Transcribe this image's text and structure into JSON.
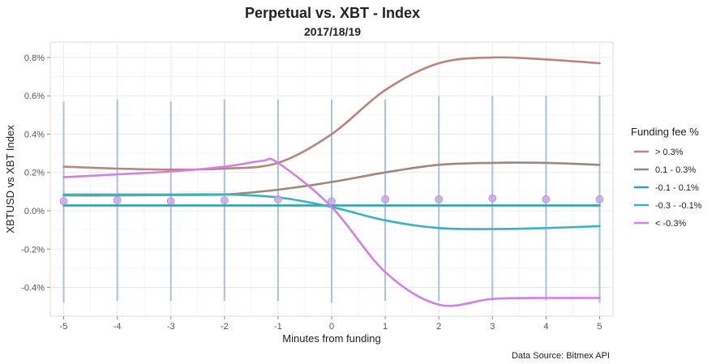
{
  "chart_data": {
    "type": "line",
    "title": "Perpetual vs. XBT - Index",
    "subtitle": "2017/18/19",
    "xlabel": "Minutes from funding",
    "ylabel": "XBTUSD vs XBT Index",
    "caption": "Data Source: Bitmex API",
    "xlim": [
      -5.25,
      5.25
    ],
    "ylim": [
      -0.0055,
      0.0088
    ],
    "x_ticks": [
      -5,
      -4,
      -3,
      -2,
      -1,
      0,
      1,
      2,
      3,
      4,
      5
    ],
    "x_tick_labels": [
      "-5",
      "-4",
      "-3",
      "-2",
      "-1",
      "0",
      "1",
      "2",
      "3",
      "4",
      "5"
    ],
    "y_ticks": [
      -0.004,
      -0.002,
      0,
      0.002,
      0.004,
      0.006,
      0.008
    ],
    "y_tick_labels": [
      "-0.4%",
      "-0.2%",
      "0.0%",
      "0.2%",
      "0.4%",
      "0.6%",
      "0.8%"
    ],
    "grid": true,
    "legend": {
      "title": "Funding fee %",
      "position": "right"
    },
    "series": [
      {
        "name": "> 0.3%",
        "color": "#B8867B",
        "x": [
          -5,
          -4,
          -3,
          -2,
          -1,
          0,
          1,
          2,
          3,
          4,
          5
        ],
        "values": [
          0.0023,
          0.0022,
          0.00215,
          0.0022,
          0.0025,
          0.004,
          0.0063,
          0.0077,
          0.008,
          0.0079,
          0.0077
        ]
      },
      {
        "name": "0.1 - 0.3%",
        "color": "#A0877A",
        "x": [
          -5,
          -4,
          -3,
          -2,
          -1,
          0,
          1,
          2,
          3,
          4,
          5
        ],
        "values": [
          0.0008,
          0.0008,
          0.00082,
          0.00085,
          0.0011,
          0.0015,
          0.002,
          0.0024,
          0.0025,
          0.0025,
          0.0024
        ]
      },
      {
        "name": "-0.1 - 0.1%",
        "color": "#2EA3B0",
        "x": [
          -5,
          -4,
          -3,
          -2,
          -1,
          0,
          1,
          2,
          3,
          4,
          5
        ],
        "values": [
          0.00028,
          0.00028,
          0.00028,
          0.00028,
          0.00028,
          0.00028,
          0.00028,
          0.00028,
          0.00028,
          0.00028,
          0.00028
        ]
      },
      {
        "name": "-0.3 - -0.1%",
        "color": "#3AB2C4",
        "x": [
          -5,
          -4,
          -3,
          -2,
          -1,
          0,
          1,
          2,
          3,
          4,
          5
        ],
        "values": [
          0.00085,
          0.00085,
          0.00085,
          0.00085,
          0.0007,
          0.0002,
          -0.0005,
          -0.0009,
          -0.00095,
          -0.0009,
          -0.0008
        ]
      },
      {
        "name": "< -0.3%",
        "color": "#D47FE6",
        "x": [
          -5,
          -4,
          -3,
          -2,
          -1.3,
          -1,
          0,
          1,
          2,
          3,
          4,
          5
        ],
        "values": [
          0.00175,
          0.0019,
          0.00205,
          0.0023,
          0.0026,
          0.0025,
          0.0002,
          -0.0032,
          -0.0049,
          -0.0046,
          -0.00455,
          -0.00455
        ]
      }
    ],
    "points": {
      "color": "#C9A8E8",
      "x": [
        -5,
        -4,
        -3,
        -2,
        -1,
        0,
        1,
        2,
        3,
        4,
        5
      ],
      "y": [
        0.0005,
        0.00055,
        0.0005,
        0.00055,
        0.0006,
        0.0005,
        0.0006,
        0.0006,
        0.00065,
        0.0006,
        0.0006
      ]
    },
    "vertical_ranges": {
      "color": "#A7C3DC",
      "x": [
        -5,
        -4,
        -3,
        -2,
        -1,
        0,
        1,
        2,
        3,
        4,
        5
      ],
      "low": [
        -0.0048,
        -0.0047,
        -0.0047,
        -0.0047,
        -0.0047,
        -0.0048,
        -0.0047,
        -0.0047,
        -0.0047,
        -0.0047,
        -0.0048
      ],
      "high": [
        0.0057,
        0.0058,
        0.0057,
        0.0058,
        0.0058,
        0.0058,
        0.0058,
        0.006,
        0.006,
        0.006,
        0.006
      ]
    }
  }
}
